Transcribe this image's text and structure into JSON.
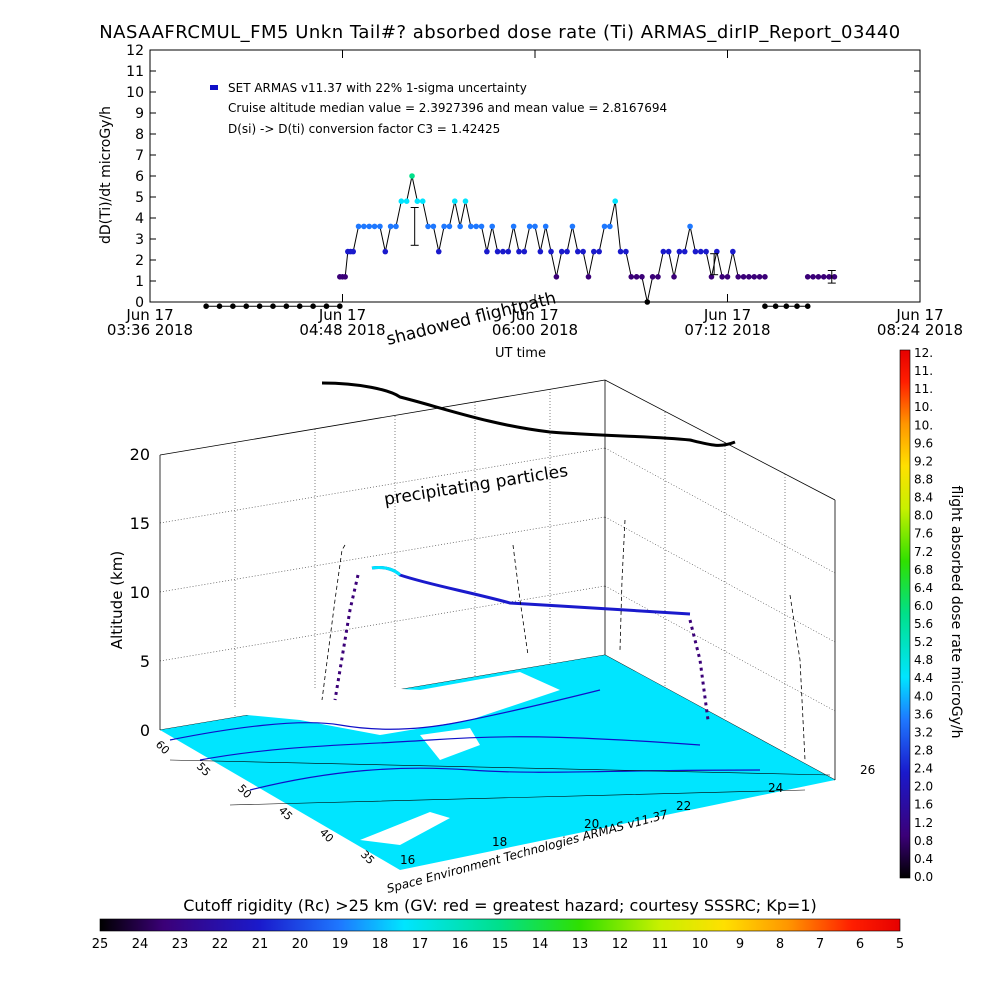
{
  "title": "NASAAFRCMUL_FM5 Unkn Tail#? absorbed dose rate (Ti) ARMAS_dirIP_Report_03440",
  "colors": {
    "plot_line": "#000000",
    "color_scale": [
      "#000000",
      "#3b0078",
      "#1a1acc",
      "#1e78ff",
      "#00e5ff",
      "#00e08a",
      "#2fe000",
      "#c8f000",
      "#ffe000",
      "#ff9600",
      "#ff1e00",
      "#e60000"
    ]
  },
  "chart_data": [
    {
      "type": "line",
      "ylabel": "dD(Ti)/dt microGy/h",
      "ylim": [
        0,
        12
      ],
      "yticks": [
        "0",
        "1",
        "2",
        "3",
        "4",
        "5",
        "6",
        "7",
        "8",
        "9",
        "10",
        "11",
        "12"
      ],
      "xlim": [
        "03:36",
        "08:24"
      ],
      "xticks": [
        {
          "l1": "Jun 17",
          "l2": "03:36 2018",
          "t": 216
        },
        {
          "l1": "Jun 17",
          "l2": "04:48 2018",
          "t": 288
        },
        {
          "l1": "Jun 17",
          "l2": "06:00 2018",
          "t": 360
        },
        {
          "l1": "Jun 17",
          "l2": "07:12 2018",
          "t": 432
        },
        {
          "l1": "Jun 17",
          "l2": "08:24 2018",
          "t": 504
        }
      ],
      "legend": [
        "SET ARMAS v11.37 with 22% 1-sigma uncertainty",
        "Cruise altitude median value = 2.3927396 and mean value = 2.8167694",
        "D(si) -> D(ti) conversion factor C3 = 1.42425"
      ],
      "series": [
        {
          "x": [
            237,
            242,
            247,
            252,
            257,
            262,
            267,
            272,
            277,
            282,
            287
          ],
          "y": [
            -0.2,
            -0.2,
            -0.2,
            -0.2,
            -0.2,
            -0.2,
            -0.2,
            -0.2,
            -0.2,
            -0.2,
            -0.2
          ]
        },
        {
          "x": [
            287,
            288,
            289,
            290,
            291,
            292,
            294,
            296,
            298,
            300,
            302,
            304,
            306,
            308,
            310,
            312,
            314,
            316,
            318,
            320,
            322,
            324,
            326,
            328,
            330,
            332,
            334,
            336,
            338,
            340,
            342,
            344,
            346,
            348,
            350,
            352,
            354,
            356,
            358,
            360,
            362,
            364,
            366,
            368,
            370,
            372,
            374,
            376,
            378,
            380,
            382,
            384,
            386,
            388,
            390,
            392,
            394,
            396,
            398,
            400,
            402,
            404,
            406,
            408,
            410,
            412,
            414,
            416,
            418,
            420,
            422,
            424,
            426,
            428,
            430,
            432,
            434,
            436,
            438,
            440,
            442,
            444,
            446
          ],
          "y": [
            1.2,
            1.2,
            1.2,
            2.4,
            2.4,
            2.4,
            3.6,
            3.6,
            3.6,
            3.6,
            3.6,
            2.4,
            3.6,
            3.6,
            4.8,
            4.8,
            6.0,
            4.8,
            4.8,
            3.6,
            3.6,
            2.4,
            3.6,
            3.6,
            4.8,
            3.6,
            4.8,
            3.6,
            3.6,
            3.6,
            2.4,
            3.6,
            2.4,
            2.4,
            2.4,
            3.6,
            2.4,
            2.4,
            3.6,
            3.6,
            2.4,
            3.6,
            2.4,
            1.2,
            2.4,
            2.4,
            3.6,
            2.4,
            2.4,
            1.2,
            2.4,
            2.4,
            3.6,
            3.6,
            4.8,
            2.4,
            2.4,
            1.2,
            1.2,
            1.2,
            0,
            1.2,
            1.2,
            2.4,
            2.4,
            1.2,
            2.4,
            2.4,
            3.6,
            2.4,
            2.4,
            2.4,
            1.2,
            2.4,
            1.2,
            1.2,
            2.4,
            1.2,
            1.2,
            1.2,
            1.2,
            1.2,
            1.2
          ]
        },
        {
          "x": [
            446,
            450,
            454,
            458,
            462
          ],
          "y": [
            -0.2,
            -0.2,
            -0.2,
            -0.2,
            -0.2
          ]
        },
        {
          "x": [
            462,
            464,
            466,
            468,
            470,
            472
          ],
          "y": [
            1.2,
            1.2,
            1.2,
            1.2,
            1.2,
            1.2
          ]
        }
      ],
      "error_bars": [
        {
          "x": 315,
          "y": 3.6,
          "e": 0.9
        },
        {
          "x": 427,
          "y": 1.8,
          "e": 0.5
        },
        {
          "x": 471,
          "y": 1.2,
          "e": 0.3
        }
      ]
    },
    {
      "type": "scatter",
      "labels": {
        "shadowed": "shadowed flightpath",
        "ut_time": "UT time",
        "precip": "precipitating particles"
      },
      "zlabel": "Altitude (km)",
      "zticks": [
        "0",
        "5",
        "10",
        "15",
        "20"
      ],
      "lat_ticks": [
        "60",
        "55",
        "50",
        "45",
        "40",
        "35"
      ],
      "lon_ticks": [
        "16",
        "18",
        "20",
        "22",
        "24",
        "26"
      ],
      "credit": "Space Environment Technologies ARMAS v11.37"
    },
    {
      "type": "heatmap",
      "colorbar_v": {
        "label": "flight absorbed dose rate microGy/h",
        "ticks": [
          "12.",
          "11.",
          "11.",
          "10.",
          "10.",
          "9.6",
          "9.2",
          "8.8",
          "8.4",
          "8.0",
          "7.6",
          "7.2",
          "6.8",
          "6.4",
          "6.0",
          "5.6",
          "5.2",
          "4.8",
          "4.4",
          "4.0",
          "3.6",
          "3.2",
          "2.8",
          "2.4",
          "2.0",
          "1.6",
          "1.2",
          "0.8",
          "0.4",
          "0.0"
        ]
      },
      "colorbar_h": {
        "label": "Cutoff rigidity (Rc) >25 km (GV: red = greatest hazard; courtesy SSSRC; Kp=1)",
        "ticks": [
          "25",
          "24",
          "23",
          "22",
          "21",
          "20",
          "19",
          "18",
          "17",
          "16",
          "15",
          "14",
          "13",
          "12",
          "11",
          "10",
          "9",
          "8",
          "7",
          "6",
          "5"
        ]
      }
    }
  ]
}
